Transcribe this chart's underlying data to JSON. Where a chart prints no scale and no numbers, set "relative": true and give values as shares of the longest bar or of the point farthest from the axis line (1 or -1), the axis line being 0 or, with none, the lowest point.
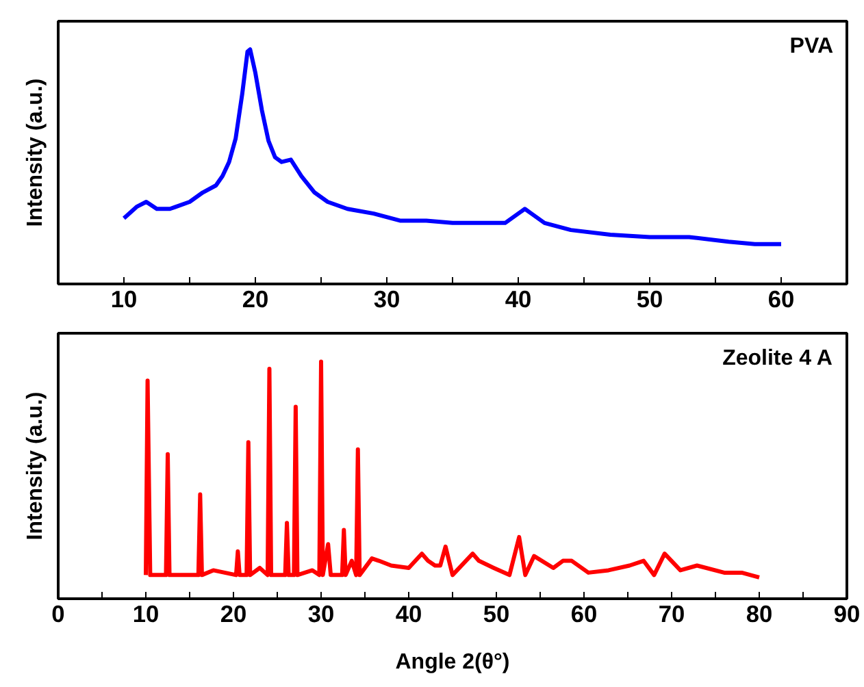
{
  "chart_data": [
    {
      "type": "line",
      "relative": true,
      "ylabel": "Intensity (a.u.)",
      "annotations": [
        "PVA"
      ],
      "xlim": [
        5,
        65
      ],
      "xticks": [
        10,
        {
          "value": 15,
          "label": null
        },
        20,
        {
          "value": 25,
          "label": null
        },
        30,
        {
          "value": 35,
          "label": null
        },
        40,
        {
          "value": 45,
          "label": null
        },
        50,
        {
          "value": 55,
          "label": null
        },
        60
      ],
      "tick_labels": "x",
      "grid": false,
      "series": [
        {
          "color": "#0000ff",
          "x": [
            10,
            11,
            11.7,
            12.5,
            13.5,
            15,
            16,
            17,
            17.5,
            18,
            18.5,
            19,
            19.4,
            19.6,
            20,
            20.5,
            21,
            21.5,
            22,
            22.7,
            23.5,
            24.5,
            25.5,
            27,
            29,
            31,
            33,
            35,
            37,
            39,
            40,
            40.5,
            41,
            42,
            44,
            47,
            50,
            53,
            56,
            58,
            60
          ],
          "values": [
            0.28,
            0.33,
            0.35,
            0.32,
            0.32,
            0.35,
            0.39,
            0.42,
            0.46,
            0.52,
            0.62,
            0.81,
            0.99,
            1,
            0.9,
            0.74,
            0.61,
            0.54,
            0.52,
            0.53,
            0.46,
            0.39,
            0.35,
            0.32,
            0.3,
            0.27,
            0.27,
            0.26,
            0.26,
            0.26,
            0.3,
            0.32,
            0.3,
            0.26,
            0.23,
            0.21,
            0.2,
            0.2,
            0.18,
            0.17,
            0.17
          ]
        }
      ]
    },
    {
      "type": "line",
      "relative": true,
      "xlabel": "Angle 2(θ°)",
      "ylabel": "Intensity (a.u.)",
      "annotations": [
        "Zeolite 4 A"
      ],
      "xlim": [
        0,
        90
      ],
      "xticks": [
        0,
        {
          "value": 5,
          "label": null
        },
        10,
        {
          "value": 15,
          "label": null
        },
        20,
        {
          "value": 25,
          "label": null
        },
        30,
        {
          "value": 35,
          "label": null
        },
        40,
        {
          "value": 45,
          "label": null
        },
        50,
        {
          "value": 55,
          "label": null
        },
        60,
        {
          "value": 65,
          "label": null
        },
        70,
        {
          "value": 75,
          "label": null
        },
        80,
        {
          "value": 85,
          "label": null
        },
        90
      ],
      "tick_labels": "x",
      "grid": false,
      "series": [
        {
          "color": "#ff0000",
          "x": [
            10,
            10.2,
            10.5,
            12.3,
            12.5,
            12.7,
            16,
            16.2,
            16.4,
            17.7,
            20.3,
            20.5,
            20.7,
            21.5,
            21.7,
            21.9,
            23,
            23.9,
            24.1,
            24.3,
            25.9,
            26.1,
            26.3,
            26.9,
            27.1,
            27.3,
            29,
            29.8,
            30,
            30.2,
            30.8,
            31.1,
            32.4,
            32.6,
            32.8,
            33.5,
            34,
            34.2,
            34.4,
            35.8,
            36.6,
            38,
            40,
            41.5,
            42.2,
            43,
            43.6,
            44.2,
            45,
            47.3,
            48,
            49.7,
            51.5,
            52.6,
            53.3,
            54.3,
            56.5,
            57.6,
            58.6,
            60.5,
            62.8,
            65.2,
            66.8,
            68,
            69.2,
            71,
            72.9,
            76,
            78,
            80
          ],
          "values": [
            0.1,
            0.92,
            0.1,
            0.1,
            0.61,
            0.1,
            0.1,
            0.44,
            0.1,
            0.12,
            0.1,
            0.2,
            0.1,
            0.1,
            0.66,
            0.1,
            0.13,
            0.1,
            0.97,
            0.1,
            0.1,
            0.32,
            0.1,
            0.1,
            0.81,
            0.1,
            0.12,
            0.1,
            1,
            0.1,
            0.23,
            0.1,
            0.1,
            0.29,
            0.1,
            0.16,
            0.1,
            0.63,
            0.1,
            0.17,
            0.16,
            0.14,
            0.13,
            0.19,
            0.16,
            0.14,
            0.14,
            0.22,
            0.1,
            0.19,
            0.16,
            0.13,
            0.1,
            0.26,
            0.1,
            0.18,
            0.13,
            0.16,
            0.16,
            0.11,
            0.12,
            0.14,
            0.16,
            0.1,
            0.19,
            0.12,
            0.14,
            0.11,
            0.11,
            0.09
          ]
        }
      ]
    }
  ]
}
